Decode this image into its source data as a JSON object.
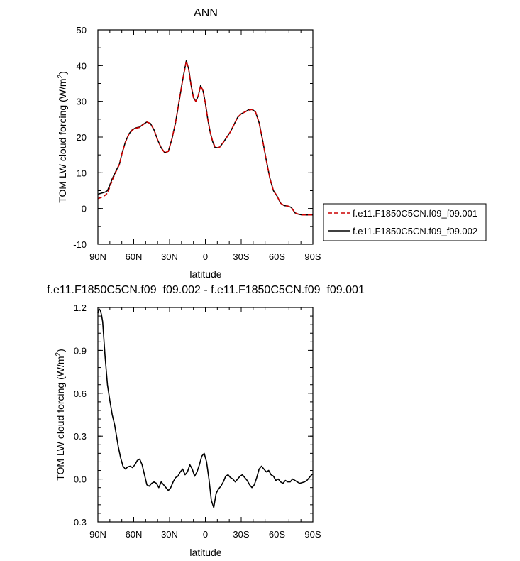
{
  "figure": {
    "top_title": "ANN",
    "bottom_title": "f.e11.F1850C5CN.f09_f09.002 - f.e11.F1850C5CN.f09_f09.001"
  },
  "chart_data": [
    {
      "type": "line",
      "title": "ANN",
      "xlabel": "latitude",
      "ylabel_main": "TOM LW cloud forcing (W/m",
      "ylabel_sup": "2",
      "ylabel_tail": ")",
      "xlim": [
        90,
        -90
      ],
      "ylim": [
        -10,
        50
      ],
      "xticks": [
        {
          "value": 90,
          "label": "90N"
        },
        {
          "value": 60,
          "label": "60N"
        },
        {
          "value": 30,
          "label": "30N"
        },
        {
          "value": 0,
          "label": "0"
        },
        {
          "value": -30,
          "label": "30S"
        },
        {
          "value": -60,
          "label": "60S"
        },
        {
          "value": -90,
          "label": "90S"
        }
      ],
      "yticks": [
        {
          "value": -10,
          "label": "-10"
        },
        {
          "value": 0,
          "label": "0"
        },
        {
          "value": 10,
          "label": "10"
        },
        {
          "value": 20,
          "label": "20"
        },
        {
          "value": 30,
          "label": "30"
        },
        {
          "value": 40,
          "label": "40"
        },
        {
          "value": 50,
          "label": "50"
        }
      ],
      "legend_position": "right",
      "series": [
        {
          "name": "f.e11.F1850C5CN.f09_f09.001",
          "color": "#cc0000",
          "dash": "dashed",
          "x": [
            90,
            88,
            86,
            84,
            82,
            80,
            78,
            75,
            72,
            70,
            67,
            64,
            61,
            58,
            55,
            52,
            49,
            46,
            43,
            40,
            37,
            34,
            31,
            28,
            25,
            22,
            19,
            16,
            14,
            12,
            10,
            8,
            6,
            4,
            2,
            0,
            -2,
            -4,
            -6,
            -8,
            -10,
            -12,
            -15,
            -18,
            -21,
            -24,
            -27,
            -30,
            -33,
            -36,
            -39,
            -42,
            -45,
            -48,
            -51,
            -54,
            -57,
            -60,
            -63,
            -66,
            -69,
            -72,
            -75,
            -78,
            -81,
            -84,
            -87,
            -90
          ],
          "y": [
            2.8,
            3.0,
            3.3,
            3.7,
            4.3,
            6.0,
            7.9,
            10.2,
            12.3,
            15.1,
            18.5,
            20.8,
            22.0,
            22.5,
            22.7,
            23.5,
            24.2,
            23.8,
            22.0,
            19.2,
            17.0,
            15.6,
            16.0,
            19.5,
            24.0,
            30.0,
            36.0,
            41.2,
            39.0,
            34.5,
            31.0,
            30.0,
            31.5,
            34.3,
            33.0,
            29.5,
            25.0,
            21.5,
            19.0,
            17.3,
            17.0,
            17.2,
            18.5,
            20.0,
            21.5,
            23.5,
            25.5,
            26.5,
            27.0,
            27.5,
            27.7,
            27.0,
            24.0,
            19.0,
            13.5,
            8.5,
            5.0,
            3.5,
            1.5,
            0.8,
            0.7,
            0.3,
            -1.2,
            -1.6,
            -1.8,
            -1.8,
            -1.8,
            -1.8
          ]
        },
        {
          "name": "f.e11.F1850C5CN.f09_f09.002",
          "color": "#000000",
          "dash": "solid",
          "x": [
            90,
            88,
            86,
            84,
            82,
            80,
            78,
            75,
            72,
            70,
            67,
            64,
            61,
            58,
            55,
            52,
            49,
            46,
            43,
            40,
            37,
            34,
            31,
            28,
            25,
            22,
            19,
            16,
            14,
            12,
            10,
            8,
            6,
            4,
            2,
            0,
            -2,
            -4,
            -6,
            -8,
            -10,
            -12,
            -15,
            -18,
            -21,
            -24,
            -27,
            -30,
            -33,
            -36,
            -39,
            -42,
            -45,
            -48,
            -51,
            -54,
            -57,
            -60,
            -63,
            -66,
            -69,
            -72,
            -75,
            -78,
            -81,
            -84,
            -87,
            -90
          ],
          "y": [
            4.0,
            4.2,
            4.4,
            4.6,
            5.0,
            6.6,
            8.3,
            10.4,
            12.4,
            15.2,
            18.6,
            20.9,
            22.1,
            22.6,
            22.8,
            23.6,
            24.2,
            23.8,
            22.0,
            19.2,
            17.0,
            15.6,
            16.0,
            19.5,
            24.0,
            30.0,
            36.0,
            41.3,
            39.1,
            34.6,
            31.1,
            30.0,
            31.5,
            34.4,
            33.0,
            29.5,
            25.0,
            21.4,
            18.8,
            17.1,
            17.0,
            17.2,
            18.5,
            20.0,
            21.5,
            23.5,
            25.5,
            26.5,
            27.0,
            27.6,
            27.8,
            27.0,
            24.0,
            19.0,
            13.5,
            8.5,
            5.0,
            3.5,
            1.5,
            0.8,
            0.7,
            0.3,
            -1.2,
            -1.6,
            -1.8,
            -1.8,
            -1.8,
            -1.8
          ]
        }
      ]
    },
    {
      "type": "line",
      "title": "f.e11.F1850C5CN.f09_f09.002 - f.e11.F1850C5CN.f09_f09.001",
      "xlabel": "latitude",
      "ylabel_main": "TOM LW cloud forcing (W/m",
      "ylabel_sup": "2",
      "ylabel_tail": ")",
      "xlim": [
        90,
        -90
      ],
      "ylim": [
        -0.3,
        1.2
      ],
      "xticks": [
        {
          "value": 90,
          "label": "90N"
        },
        {
          "value": 60,
          "label": "60N"
        },
        {
          "value": 30,
          "label": "30N"
        },
        {
          "value": 0,
          "label": "0"
        },
        {
          "value": -30,
          "label": "30S"
        },
        {
          "value": -60,
          "label": "60S"
        },
        {
          "value": -90,
          "label": "90S"
        }
      ],
      "yticks": [
        {
          "value": -0.3,
          "label": "-0.3"
        },
        {
          "value": 0,
          "label": "0.0"
        },
        {
          "value": 0.3,
          "label": "0.3"
        },
        {
          "value": 0.6,
          "label": "0.6"
        },
        {
          "value": 0.9,
          "label": "0.9"
        },
        {
          "value": 1.2,
          "label": "1.2"
        }
      ],
      "series": [
        {
          "name": "",
          "color": "#000000",
          "dash": "solid",
          "x": [
            90,
            89,
            88,
            87,
            86,
            85,
            84,
            83,
            82,
            80,
            78,
            76,
            75,
            73,
            71,
            69,
            67,
            65,
            63,
            61,
            59,
            57,
            55,
            53,
            51,
            49,
            47,
            45,
            43,
            41,
            39,
            37,
            35,
            33,
            31,
            29,
            27,
            25,
            23,
            21,
            19,
            17,
            15,
            13,
            11,
            9,
            7,
            5,
            3,
            1,
            -1,
            -3,
            -5,
            -7,
            -9,
            -11,
            -13,
            -15,
            -17,
            -19,
            -21,
            -23,
            -25,
            -27,
            -29,
            -31,
            -33,
            -35,
            -37,
            -39,
            -41,
            -43,
            -45,
            -47,
            -49,
            -51,
            -53,
            -55,
            -57,
            -59,
            -61,
            -63,
            -65,
            -67,
            -69,
            -71,
            -73,
            -75,
            -77,
            -79,
            -81,
            -83,
            -85,
            -87,
            -89,
            -90
          ],
          "y": [
            1.16,
            1.19,
            1.18,
            1.15,
            1.1,
            0.98,
            0.86,
            0.76,
            0.66,
            0.55,
            0.45,
            0.38,
            0.33,
            0.23,
            0.15,
            0.09,
            0.07,
            0.085,
            0.09,
            0.08,
            0.1,
            0.13,
            0.14,
            0.1,
            0.03,
            -0.04,
            -0.05,
            -0.03,
            -0.02,
            -0.03,
            -0.06,
            -0.02,
            -0.04,
            -0.06,
            -0.08,
            -0.06,
            -0.02,
            0.01,
            0.02,
            0.05,
            0.07,
            0.03,
            0.05,
            0.1,
            0.07,
            0.02,
            0.05,
            0.1,
            0.16,
            0.18,
            0.12,
            0.0,
            -0.15,
            -0.2,
            -0.1,
            -0.07,
            -0.05,
            -0.02,
            0.02,
            0.03,
            0.01,
            0.0,
            -0.02,
            0.0,
            0.02,
            0.03,
            0.01,
            -0.01,
            -0.04,
            -0.06,
            -0.04,
            0.01,
            0.07,
            0.09,
            0.07,
            0.05,
            0.06,
            0.03,
            0.02,
            -0.01,
            0.0,
            -0.02,
            -0.03,
            -0.01,
            -0.02,
            -0.02,
            0.0,
            -0.01,
            -0.02,
            -0.03,
            -0.025,
            -0.02,
            -0.01,
            0.01,
            0.03,
            0.035
          ]
        }
      ]
    }
  ]
}
